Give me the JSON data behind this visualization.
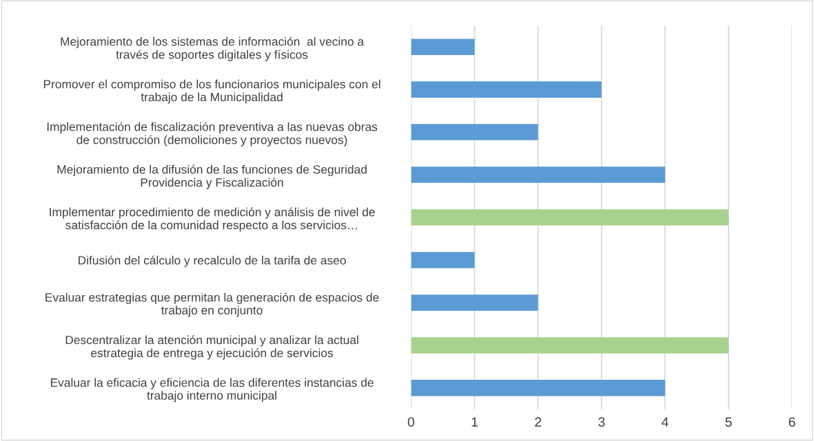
{
  "chart_data": {
    "type": "bar",
    "orientation": "horizontal",
    "categories": [
      "Mejoramiento de los sistemas de información  al vecino a\ntravés de soportes digitales y físicos",
      "Promover el compromiso de los funcionarios municipales con el\ntrabajo de la Municipalidad",
      "Implementación de fiscalización preventiva a las nuevas obras\nde construcción (demoliciones y proyectos nuevos)",
      "Mejoramiento de la difusión de las funciones de Seguridad\nProvidencia y Fiscalización",
      "Implementar procedimiento de medición y análisis de nivel de\nsatisfacción de la comunidad respecto a los servicios…",
      "Difusión del cálculo y recalculo de la tarifa de aseo",
      "Evaluar estrategias que permitan la generación de espacios de\ntrabajo en conjunto",
      "Descentralizar la atención municipal y analizar la actual\nestrategia de entrega y ejecución de servicios",
      "Evaluar la eficacia y eficiencia de las diferentes instancias de\ntrabajo interno municipal"
    ],
    "values": [
      1,
      3,
      2,
      4,
      5,
      1,
      2,
      5,
      4
    ],
    "colors": [
      "#5b9bd5",
      "#5b9bd5",
      "#5b9bd5",
      "#5b9bd5",
      "#a9d18e",
      "#5b9bd5",
      "#5b9bd5",
      "#a9d18e",
      "#5b9bd5"
    ],
    "xlim": [
      0,
      6
    ],
    "xticks": [
      0,
      1,
      2,
      3,
      4,
      5,
      6
    ],
    "grid": "x",
    "legend": false
  }
}
